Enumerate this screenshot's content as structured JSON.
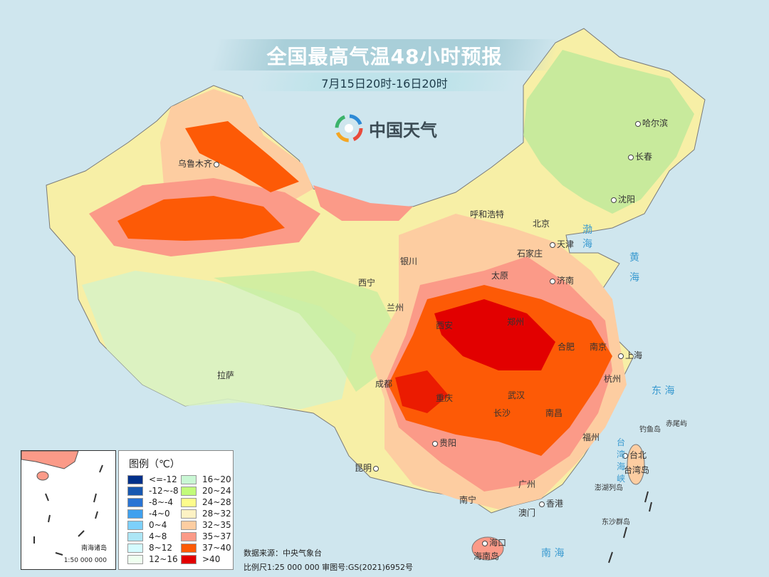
{
  "header": {
    "title": "全国最高气温48小时预报",
    "subtitle": "7月15日20时-16日20时"
  },
  "logo": {
    "text": "中国天气",
    "icon": "china-weather-swirl-logo"
  },
  "cities": [
    {
      "name": "乌鲁木齐"
    },
    {
      "name": "哈尔滨"
    },
    {
      "name": "长春"
    },
    {
      "name": "沈阳"
    },
    {
      "name": "呼和浩特"
    },
    {
      "name": "北京"
    },
    {
      "name": "天津"
    },
    {
      "name": "石家庄"
    },
    {
      "name": "太原"
    },
    {
      "name": "济南"
    },
    {
      "name": "银川"
    },
    {
      "name": "西宁"
    },
    {
      "name": "兰州"
    },
    {
      "name": "西安"
    },
    {
      "name": "郑州"
    },
    {
      "name": "合肥"
    },
    {
      "name": "南京"
    },
    {
      "name": "上海"
    },
    {
      "name": "杭州"
    },
    {
      "name": "武汉"
    },
    {
      "name": "成都"
    },
    {
      "name": "重庆"
    },
    {
      "name": "长沙"
    },
    {
      "name": "南昌"
    },
    {
      "name": "拉萨"
    },
    {
      "name": "贵阳"
    },
    {
      "name": "福州"
    },
    {
      "name": "台北"
    },
    {
      "name": "昆明"
    },
    {
      "name": "南宁"
    },
    {
      "name": "广州"
    },
    {
      "name": "香港"
    },
    {
      "name": "澳门"
    },
    {
      "name": "海口"
    }
  ],
  "places": {
    "hainan": "海南岛",
    "taiwan": "台湾岛",
    "diaoyu": "钓鱼岛",
    "chiwei": "赤尾屿",
    "penghu": "澎湖列岛",
    "dongsha": "东沙群岛"
  },
  "seas": {
    "bohai": "渤 海",
    "huanghai": "黄 海",
    "donghai": "东 海",
    "taiwan_strait": "台 湾 海 峡",
    "nanhai": "南 海"
  },
  "legend": {
    "title": "图例（℃）",
    "items": [
      {
        "label": "<=-12",
        "color": "#00308a"
      },
      {
        "label": "-12~-8",
        "color": "#1858b0"
      },
      {
        "label": "-8~-4",
        "color": "#2a74d4"
      },
      {
        "label": "-4~0",
        "color": "#3fa0ee"
      },
      {
        "label": "0~4",
        "color": "#7dd0fb"
      },
      {
        "label": "4~8",
        "color": "#ade6f5"
      },
      {
        "label": "8~12",
        "color": "#d4fbff"
      },
      {
        "label": "12~16",
        "color": "#effff0"
      },
      {
        "label": "16~20",
        "color": "#c9f7d4"
      },
      {
        "label": "20~24",
        "color": "#c2fb7a"
      },
      {
        "label": "24~28",
        "color": "#fdfc8c"
      },
      {
        "label": "28~32",
        "color": "#fdf2c4"
      },
      {
        "label": "32~35",
        "color": "#fdcda1"
      },
      {
        "label": "35~37",
        "color": "#fb9a88"
      },
      {
        "label": "37~40",
        "color": "#fd5a06"
      },
      {
        "label": ">40",
        "color": "#e20000"
      }
    ]
  },
  "inset": {
    "name": "南海诸岛",
    "scale": "1:50 000 000"
  },
  "footer": {
    "source": "数据来源：中央气象台",
    "scale": "比例尺1:25 000 000   审图号:GS(2021)6952号"
  }
}
